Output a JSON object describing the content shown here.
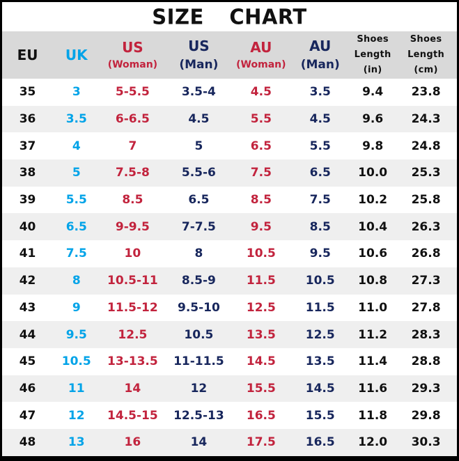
{
  "title": "SIZE CHART",
  "colors": {
    "black": "#111111",
    "cyan": "#00a3e8",
    "red": "#c2233d",
    "navy": "#17265c",
    "header_bg": "#d9d9d9",
    "stripe_bg": "#efefef",
    "border": "#000000"
  },
  "chart_data": {
    "type": "table",
    "title": "SIZE CHART",
    "columns": [
      {
        "id": "eu",
        "label_lines": [
          "EU"
        ],
        "color": "black"
      },
      {
        "id": "uk",
        "label_lines": [
          "UK"
        ],
        "color": "cyan"
      },
      {
        "id": "us-woman",
        "label_lines": [
          "US",
          "(Woman)"
        ],
        "color": "red"
      },
      {
        "id": "us-man",
        "label_lines": [
          "US",
          "(Man)"
        ],
        "color": "navy"
      },
      {
        "id": "au-woman",
        "label_lines": [
          "AU",
          "(Woman)"
        ],
        "color": "red"
      },
      {
        "id": "au-man",
        "label_lines": [
          "AU",
          "(Man)"
        ],
        "color": "navy"
      },
      {
        "id": "length-in",
        "label_lines": [
          "Shoes",
          "Length",
          "(in)"
        ],
        "color": "black"
      },
      {
        "id": "length-cm",
        "label_lines": [
          "Shoes",
          "Length",
          "(cm)"
        ],
        "color": "black"
      }
    ],
    "cell_colors": [
      "black",
      "cyan",
      "red",
      "navy",
      "red",
      "navy",
      "black",
      "black"
    ],
    "rows": [
      [
        "35",
        "3",
        "5-5.5",
        "3.5-4",
        "4.5",
        "3.5",
        "9.4",
        "23.8"
      ],
      [
        "36",
        "3.5",
        "6-6.5",
        "4.5",
        "5.5",
        "4.5",
        "9.6",
        "24.3"
      ],
      [
        "37",
        "4",
        "7",
        "5",
        "6.5",
        "5.5",
        "9.8",
        "24.8"
      ],
      [
        "38",
        "5",
        "7.5-8",
        "5.5-6",
        "7.5",
        "6.5",
        "10.0",
        "25.3"
      ],
      [
        "39",
        "5.5",
        "8.5",
        "6.5",
        "8.5",
        "7.5",
        "10.2",
        "25.8"
      ],
      [
        "40",
        "6.5",
        "9-9.5",
        "7-7.5",
        "9.5",
        "8.5",
        "10.4",
        "26.3"
      ],
      [
        "41",
        "7.5",
        "10",
        "8",
        "10.5",
        "9.5",
        "10.6",
        "26.8"
      ],
      [
        "42",
        "8",
        "10.5-11",
        "8.5-9",
        "11.5",
        "10.5",
        "10.8",
        "27.3"
      ],
      [
        "43",
        "9",
        "11.5-12",
        "9.5-10",
        "12.5",
        "11.5",
        "11.0",
        "27.8"
      ],
      [
        "44",
        "9.5",
        "12.5",
        "10.5",
        "13.5",
        "12.5",
        "11.2",
        "28.3"
      ],
      [
        "45",
        "10.5",
        "13-13.5",
        "11-11.5",
        "14.5",
        "13.5",
        "11.4",
        "28.8"
      ],
      [
        "46",
        "11",
        "14",
        "12",
        "15.5",
        "14.5",
        "11.6",
        "29.3"
      ],
      [
        "47",
        "12",
        "14.5-15",
        "12.5-13",
        "16.5",
        "15.5",
        "11.8",
        "29.8"
      ],
      [
        "48",
        "13",
        "16",
        "14",
        "17.5",
        "16.5",
        "12.0",
        "30.3"
      ]
    ]
  }
}
